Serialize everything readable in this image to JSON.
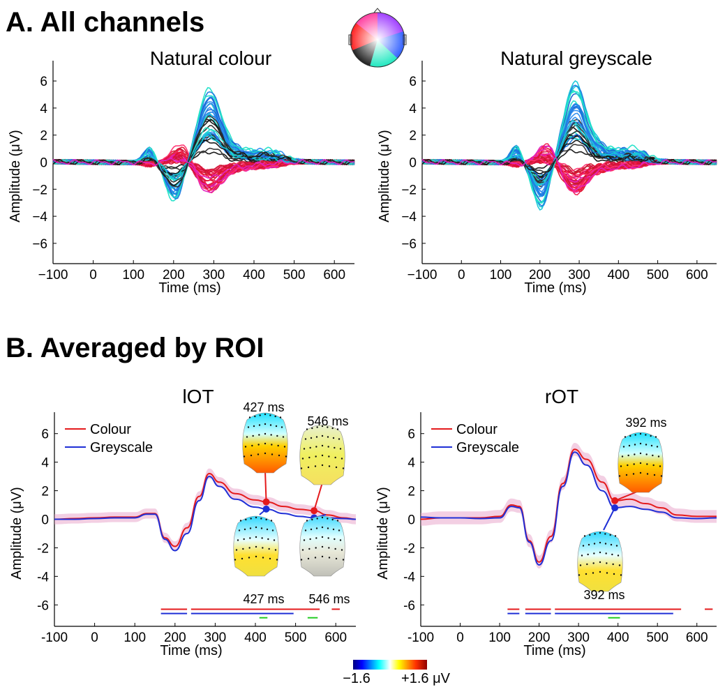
{
  "panels": {
    "a_title": "A. All channels",
    "b_title": "B. Averaged by ROI"
  },
  "colours": {
    "colour_line": "#e41a1c",
    "grey_line": "#1f2fd6",
    "sig_green": "#22cc22"
  },
  "colorbar": {
    "min_label": "−1.6",
    "max_label": "+1.6 μV",
    "colormap": "jet"
  },
  "chart_data": [
    {
      "type": "line",
      "title": "Natural colour",
      "xlabel": "Time (ms)",
      "ylabel": "Amplitude (μV)",
      "xlim": [
        -100,
        650
      ],
      "ylim": [
        -7.5,
        7.5
      ],
      "xticks": [
        -100,
        0,
        100,
        200,
        300,
        400,
        500,
        600
      ],
      "xtick_labels": [
        "−100",
        "0",
        "100",
        "200",
        "300",
        "400",
        "500",
        "600"
      ],
      "yticks": [
        -6,
        -4,
        -2,
        0,
        2,
        4,
        6
      ],
      "ytick_labels": [
        "−6",
        "−4",
        "−2",
        "0",
        "2",
        "4",
        "6"
      ],
      "channel_count": 64,
      "peak_envelope": {
        "max_amplitude": 5.7,
        "max_latency": 285,
        "min_amplitude": -3.4,
        "min_latency": 200
      },
      "grid": false
    },
    {
      "type": "line",
      "title": "Natural greyscale",
      "xlabel": "Time (ms)",
      "ylabel": "Amplitude (μV)",
      "xlim": [
        -100,
        650
      ],
      "ylim": [
        -7.5,
        7.5
      ],
      "xticks": [
        -100,
        0,
        100,
        200,
        300,
        400,
        500,
        600
      ],
      "xtick_labels": [
        "−100",
        "0",
        "100",
        "200",
        "300",
        "400",
        "500",
        "600"
      ],
      "yticks": [
        -6,
        -4,
        -2,
        0,
        2,
        4,
        6
      ],
      "ytick_labels": [
        "−6",
        "−4",
        "−2",
        "0",
        "2",
        "4",
        "6"
      ],
      "channel_count": 64,
      "peak_envelope": {
        "max_amplitude": 5.5,
        "max_latency": 285,
        "min_amplitude": -3.6,
        "min_latency": 205
      },
      "grid": false
    },
    {
      "type": "line",
      "title": "lOT",
      "xlabel": "Time (ms)",
      "ylabel": "Amplitude (μV)",
      "xlim": [
        -100,
        650
      ],
      "ylim": [
        -7.5,
        7.5
      ],
      "xticks": [
        -100,
        0,
        100,
        200,
        300,
        400,
        500,
        600
      ],
      "xtick_labels": [
        "-100",
        "0",
        "100",
        "200",
        "300",
        "400",
        "500",
        "600"
      ],
      "yticks": [
        -6,
        -4,
        -2,
        0,
        2,
        4,
        6
      ],
      "ytick_labels": [
        "-6",
        "-4",
        "-2",
        "0",
        "2",
        "4",
        "6"
      ],
      "legend": "top-left",
      "x": [
        -100,
        -50,
        0,
        50,
        100,
        130,
        150,
        175,
        200,
        230,
        260,
        285,
        310,
        350,
        400,
        430,
        470,
        510,
        546,
        580,
        620,
        650
      ],
      "series": [
        {
          "name": "Colour",
          "values": [
            0,
            0.05,
            0.1,
            0.15,
            0.15,
            0.4,
            0.4,
            -1.3,
            -1.9,
            -0.6,
            1.6,
            3.2,
            2.6,
            1.8,
            1.35,
            1.2,
            0.9,
            0.7,
            0.6,
            0.3,
            0.1,
            0
          ],
          "sem": 0.35
        },
        {
          "name": "Greyscale",
          "values": [
            0,
            0,
            0.05,
            0.1,
            0.1,
            0.35,
            0.35,
            -1.4,
            -2.2,
            -1.0,
            1.3,
            3.0,
            2.3,
            1.4,
            0.85,
            0.7,
            0.4,
            0.2,
            0.1,
            0.1,
            0.05,
            0
          ]
        }
      ],
      "topomaps": [
        {
          "label": "427 ms",
          "condition": "Colour",
          "t": 427
        },
        {
          "label": "546 ms",
          "condition": "Colour",
          "t": 546
        },
        {
          "label": "427 ms",
          "condition": "Greyscale",
          "t": 427
        },
        {
          "label": "546 ms",
          "condition": "Greyscale",
          "t": 546
        }
      ],
      "significance": {
        "Colour": [
          [
            165,
            230
          ],
          [
            240,
            560
          ],
          [
            590,
            610
          ]
        ],
        "Greyscale": [
          [
            165,
            230
          ],
          [
            240,
            495
          ]
        ],
        "difference": [
          [
            410,
            430
          ],
          [
            530,
            555
          ]
        ]
      },
      "grid": false
    },
    {
      "type": "line",
      "title": "rOT",
      "xlabel": "Time (ms)",
      "ylabel": "Amplitude (μV)",
      "xlim": [
        -100,
        650
      ],
      "ylim": [
        -7.5,
        7.5
      ],
      "xticks": [
        -100,
        0,
        100,
        200,
        300,
        400,
        500,
        600
      ],
      "xtick_labels": [
        "-100",
        "0",
        "100",
        "200",
        "300",
        "400",
        "500",
        "600"
      ],
      "yticks": [
        -6,
        -4,
        -2,
        0,
        2,
        4,
        6
      ],
      "ytick_labels": [
        "-6",
        "-4",
        "-2",
        "0",
        "2",
        "4",
        "6"
      ],
      "legend": "top-left",
      "x": [
        -100,
        -50,
        0,
        50,
        100,
        130,
        150,
        175,
        200,
        230,
        260,
        290,
        320,
        360,
        392,
        430,
        470,
        510,
        550,
        600,
        650
      ],
      "series": [
        {
          "name": "Colour",
          "values": [
            0,
            0.1,
            0.1,
            0.1,
            0.2,
            1.0,
            0.9,
            -1.5,
            -3.0,
            -1.2,
            2.5,
            4.9,
            4.2,
            2.6,
            1.3,
            1.4,
            1.1,
            0.8,
            0.3,
            0.2,
            0.2
          ],
          "sem": 0.45
        },
        {
          "name": "Greyscale",
          "values": [
            0.15,
            0.1,
            0.1,
            0.05,
            0.1,
            0.9,
            0.8,
            -1.6,
            -3.2,
            -1.5,
            2.3,
            4.7,
            3.8,
            2.0,
            0.8,
            0.9,
            0.7,
            0.5,
            0.1,
            0.05,
            0.1
          ]
        }
      ],
      "topomaps": [
        {
          "label": "392 ms",
          "condition": "Colour",
          "t": 392
        },
        {
          "label": "392 ms",
          "condition": "Greyscale",
          "t": 392
        }
      ],
      "significance": {
        "Colour": [
          [
            120,
            150
          ],
          [
            165,
            230
          ],
          [
            240,
            560
          ],
          [
            620,
            640
          ]
        ],
        "Greyscale": [
          [
            120,
            150
          ],
          [
            165,
            230
          ],
          [
            240,
            540
          ]
        ],
        "difference": [
          [
            375,
            405
          ]
        ]
      },
      "grid": false
    }
  ]
}
